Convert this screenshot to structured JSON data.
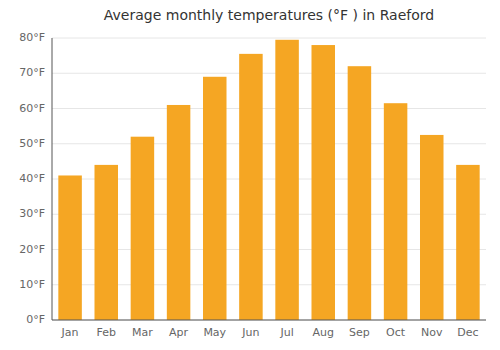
{
  "chart_data": {
    "type": "bar",
    "title": "Average monthly temperatures (°F ) in Raeford",
    "categories": [
      "Jan",
      "Feb",
      "Mar",
      "Apr",
      "May",
      "Jun",
      "Jul",
      "Aug",
      "Sep",
      "Oct",
      "Nov",
      "Dec"
    ],
    "values": [
      41,
      44,
      52,
      61,
      69,
      75.5,
      79.5,
      78,
      72,
      61.5,
      52.5,
      44
    ],
    "color": "#F5A623",
    "ylim": [
      0,
      80
    ],
    "yticks": [
      {
        "value": 0,
        "label": "0°F"
      },
      {
        "value": 10,
        "label": "10°F"
      },
      {
        "value": 20,
        "label": "20°F"
      },
      {
        "value": 30,
        "label": "30°F"
      },
      {
        "value": 40,
        "label": "40°F"
      },
      {
        "value": 50,
        "label": "50°F"
      },
      {
        "value": 60,
        "label": "60°F"
      },
      {
        "value": 70,
        "label": "70°F"
      },
      {
        "value": 80,
        "label": "80°F"
      }
    ],
    "grid": true
  }
}
